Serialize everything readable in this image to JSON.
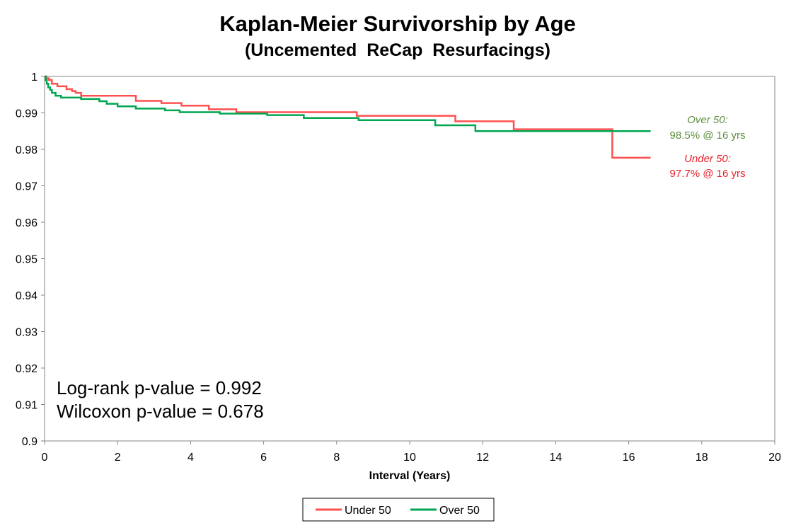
{
  "chart_data": {
    "type": "line",
    "title": "Kaplan-Meier Survivorship by Age",
    "subtitle": "(Uncemented  ReCap  Resurfacings)",
    "xlabel": "Interval (Years)",
    "ylabel": "",
    "xlim": [
      0,
      20
    ],
    "ylim": [
      0.9,
      1.0
    ],
    "x_ticks": [
      0,
      2,
      4,
      6,
      8,
      10,
      12,
      14,
      16,
      18,
      20
    ],
    "y_ticks": [
      0.9,
      0.91,
      0.92,
      0.93,
      0.94,
      0.95,
      0.96,
      0.97,
      0.98,
      0.99,
      1
    ],
    "step": true,
    "grid": false,
    "legend_position": "bottom",
    "series": [
      {
        "name": "Under 50",
        "color": "#FF5050",
        "x": [
          0,
          0.05,
          0.12,
          0.2,
          0.35,
          0.6,
          0.75,
          0.85,
          1.0,
          2.5,
          3.2,
          3.75,
          4.5,
          5.25,
          8.55,
          11.25,
          12.85,
          15.55,
          16.6
        ],
        "y": [
          1.0,
          0.9995,
          0.999,
          0.998,
          0.9973,
          0.9965,
          0.996,
          0.9955,
          0.9947,
          0.9933,
          0.9927,
          0.992,
          0.991,
          0.9902,
          0.9892,
          0.9877,
          0.9855,
          0.9777,
          0.9777
        ]
      },
      {
        "name": "Over 50",
        "color": "#00A651",
        "x": [
          0,
          0.03,
          0.06,
          0.1,
          0.15,
          0.2,
          0.3,
          0.45,
          1.0,
          1.5,
          1.7,
          2.0,
          2.5,
          3.3,
          3.7,
          4.8,
          6.1,
          7.1,
          8.6,
          10.7,
          11.8,
          16.6
        ],
        "y": [
          1.0,
          0.999,
          0.998,
          0.997,
          0.9963,
          0.9955,
          0.9947,
          0.9942,
          0.9938,
          0.9932,
          0.9925,
          0.9918,
          0.9912,
          0.9907,
          0.9902,
          0.9898,
          0.9894,
          0.9886,
          0.988,
          0.9866,
          0.985,
          0.985
        ]
      }
    ],
    "annotations": [
      {
        "label": "Over 50:",
        "value": "98.5% @ 16 yrs",
        "color": "#5E8E3E"
      },
      {
        "label": "Under 50:",
        "value": "97.7% @ 16 yrs",
        "color": "#E8202A"
      }
    ],
    "stats_text": [
      "Log-rank p-value = 0.992",
      "Wilcoxon p-value = 0.678"
    ]
  }
}
